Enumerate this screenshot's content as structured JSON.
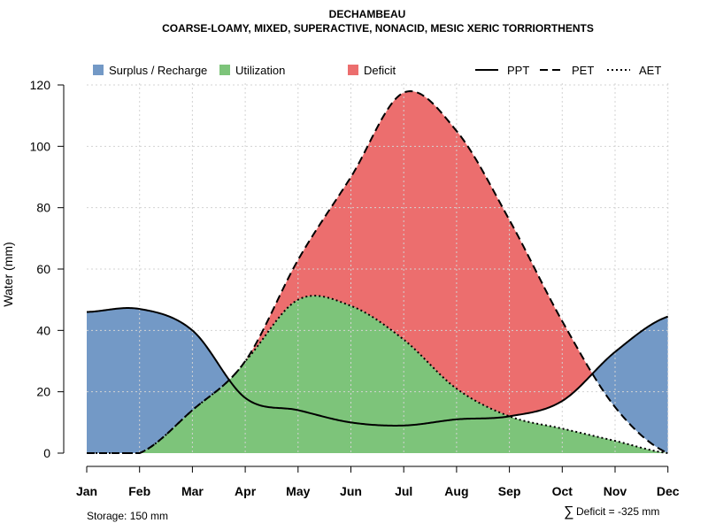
{
  "chart_data": {
    "type": "area",
    "title": "DECHAMBEAU",
    "subtitle": "COARSE-LOAMY, MIXED, SUPERACTIVE, NONACID, MESIC XERIC TORRIORTHENTS",
    "xlabel": "",
    "ylabel": "Water (mm)",
    "ylim": [
      0,
      120
    ],
    "yticks": [
      0,
      20,
      40,
      60,
      80,
      100,
      120
    ],
    "grid": true,
    "categories": [
      "Jan",
      "Feb",
      "Mar",
      "Apr",
      "May",
      "Jun",
      "Jul",
      "Aug",
      "Sep",
      "Oct",
      "Nov",
      "Dec"
    ],
    "series": [
      {
        "name": "PPT",
        "style": "solid",
        "values": [
          46,
          47,
          40,
          18,
          14,
          10,
          9,
          11,
          12,
          17,
          33,
          44.5
        ]
      },
      {
        "name": "PET",
        "style": "dashed",
        "values": [
          0,
          0,
          14,
          30,
          63,
          90,
          117.5,
          105,
          76,
          43,
          15,
          0
        ]
      },
      {
        "name": "AET",
        "style": "dotted",
        "values": [
          0,
          0,
          14,
          30,
          50,
          48,
          37,
          21,
          12,
          8,
          4,
          0
        ]
      }
    ],
    "legend": {
      "position": "top",
      "fills": [
        {
          "label": "Surplus / Recharge",
          "color": "#7399c6"
        },
        {
          "label": "Utilization",
          "color": "#7dc47a"
        },
        {
          "label": "Deficit",
          "color": "#ec6e6e"
        }
      ],
      "lines": [
        {
          "label": "PPT",
          "style": "solid"
        },
        {
          "label": "PET",
          "style": "dashed"
        },
        {
          "label": "AET",
          "style": "dotted"
        }
      ]
    },
    "annotations": {
      "storage": "Storage: 150 mm",
      "deficit_symbol": "∑",
      "deficit": "Deficit = -325 mm"
    }
  }
}
